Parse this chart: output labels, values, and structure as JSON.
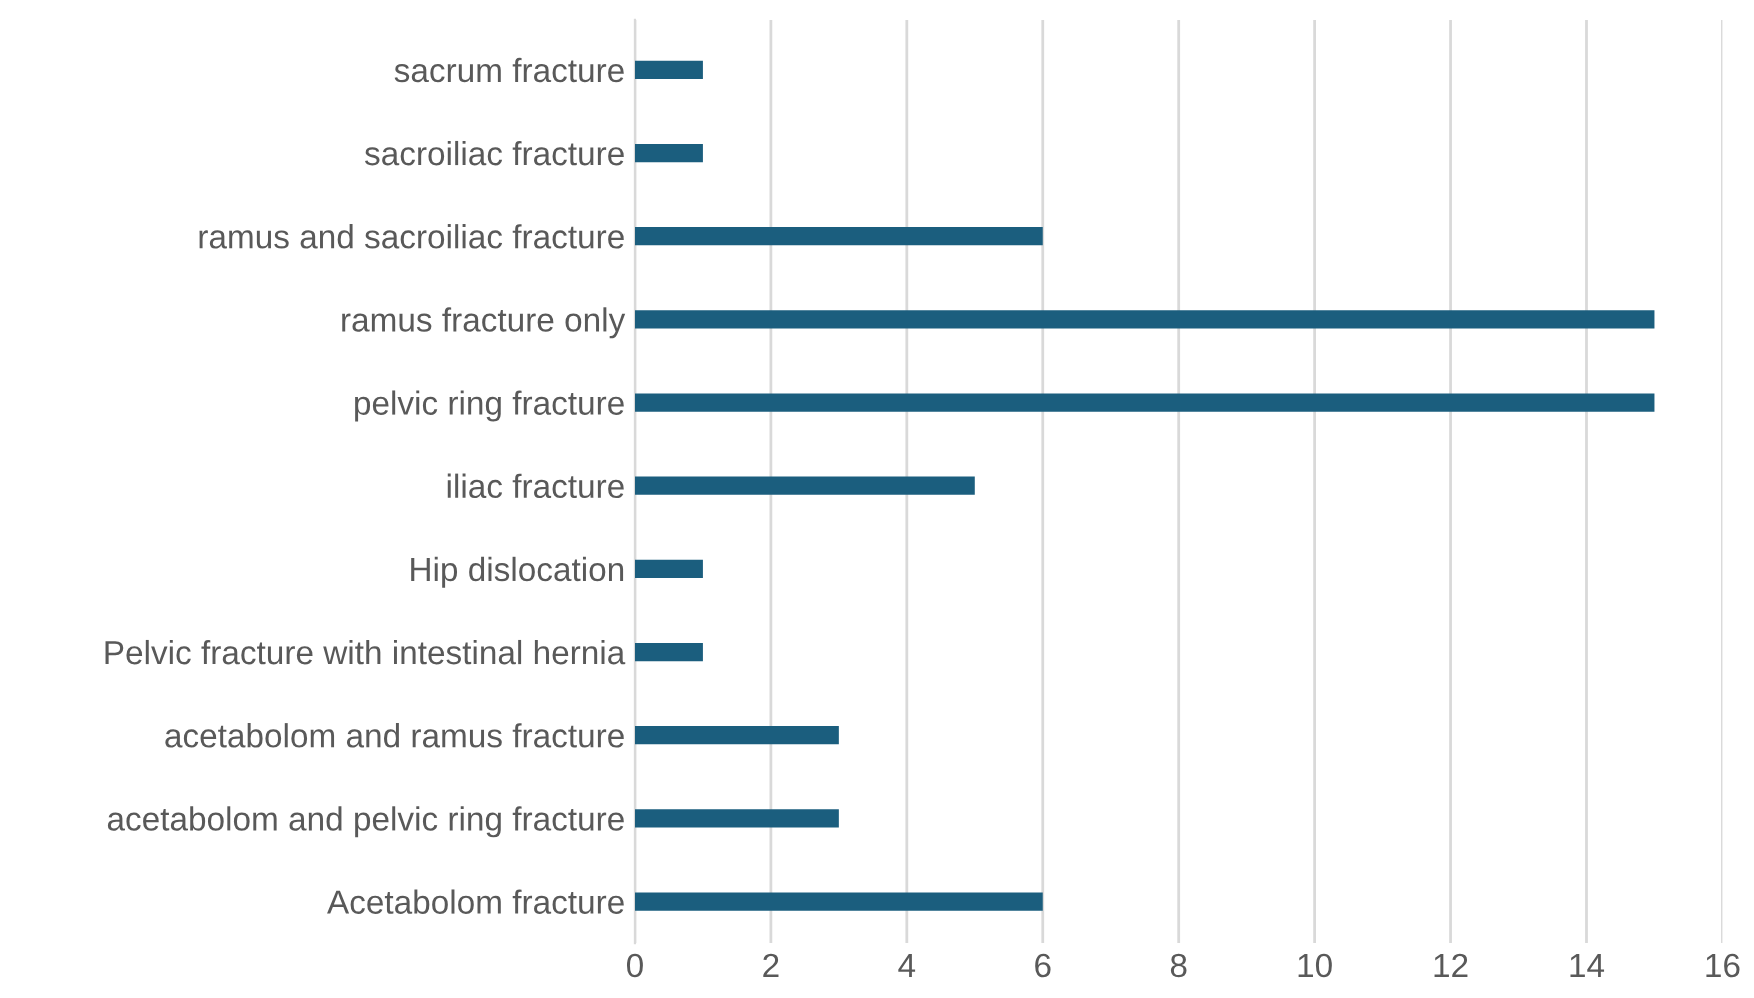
{
  "chart_data": {
    "type": "bar",
    "orientation": "horizontal",
    "categories": [
      "sacrum fracture",
      "sacroiliac fracture",
      "ramus and sacroiliac fracture",
      "ramus fracture only",
      "pelvic ring fracture",
      "iliac fracture",
      "Hip dislocation",
      "Pelvic fracture with intestinal hernia",
      "acetabolom and ramus fracture",
      "acetabolom and pelvic ring fracture",
      "Acetabolom fracture"
    ],
    "values": [
      1,
      1,
      6,
      15,
      15,
      5,
      1,
      1,
      3,
      3,
      6
    ],
    "color": "#1b5e7e",
    "xlim": [
      0,
      16
    ],
    "xticks": [
      0,
      2,
      4,
      6,
      8,
      10,
      12,
      14,
      16
    ],
    "grid": "x",
    "legend": false
  }
}
